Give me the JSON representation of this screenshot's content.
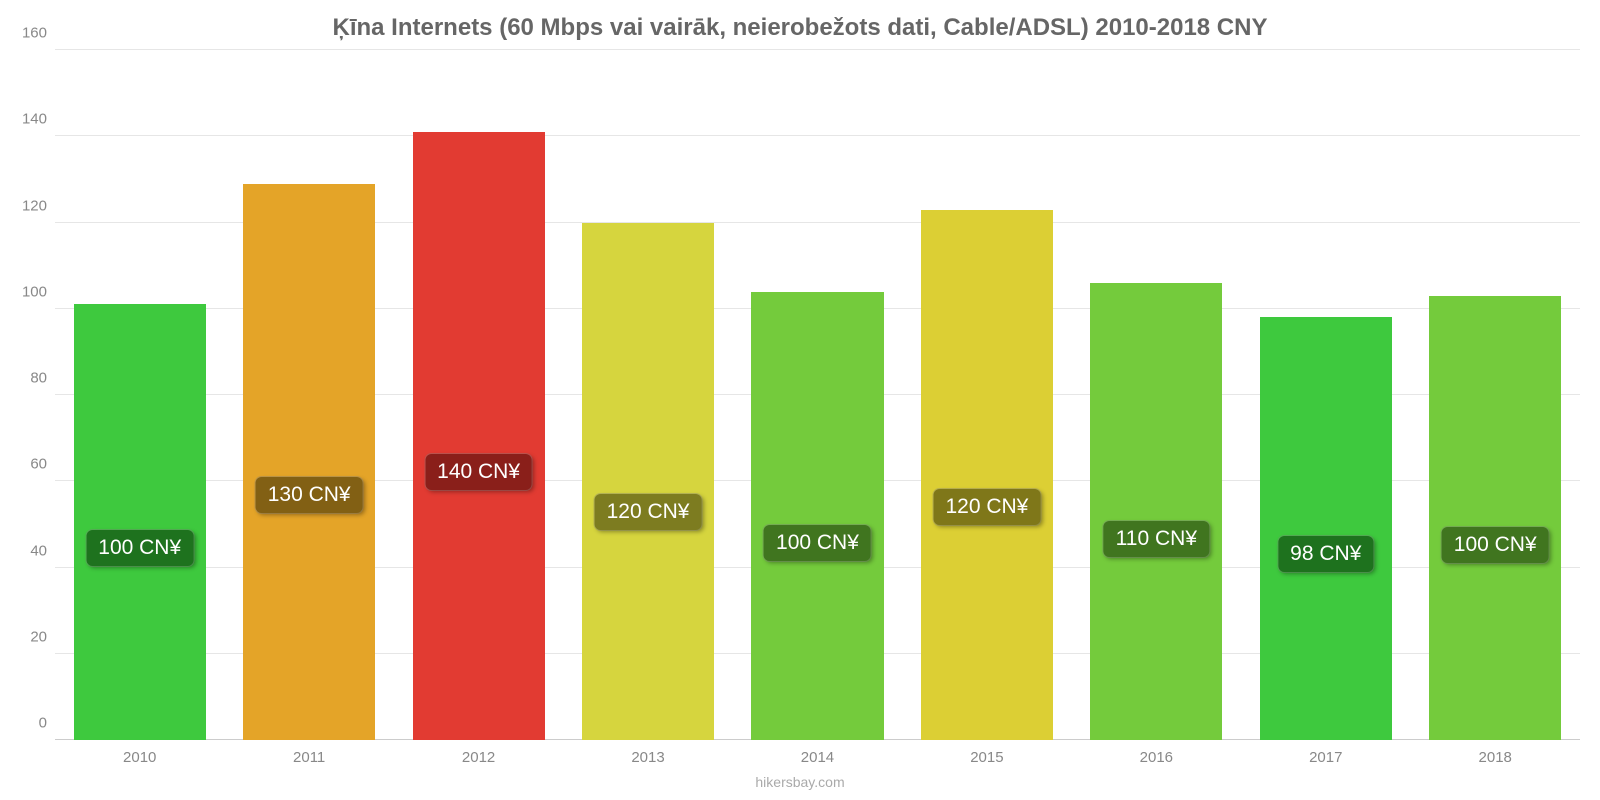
{
  "title": "Ķīna Internets (60 Mbps vai vairāk, neierobežots dati, Cable/ADSL) 2010-2018 CNY",
  "source": "hikersbay.com",
  "chart": {
    "type": "bar",
    "ylim": [
      0,
      160
    ],
    "ytick_step": 20,
    "yticks": [
      0,
      20,
      40,
      60,
      80,
      100,
      120,
      140,
      160
    ],
    "background_color": "#ffffff",
    "grid_color": "#e6e6e6",
    "baseline_color": "#cccccc",
    "axis_label_color": "#888888",
    "title_color": "#666666",
    "title_fontsize": 24,
    "axis_fontsize": 15,
    "bar_label_fontsize": 21,
    "bar_label_text_color": "#ffffff",
    "bar_width_pct": 78,
    "categories": [
      "2010",
      "2011",
      "2012",
      "2013",
      "2014",
      "2015",
      "2016",
      "2017",
      "2018"
    ],
    "values": [
      101,
      129,
      141,
      120,
      104,
      123,
      106,
      98,
      103
    ],
    "display_labels": [
      "100 CN¥",
      "130 CN¥",
      "140 CN¥",
      "120 CN¥",
      "100 CN¥",
      "120 CN¥",
      "110 CN¥",
      "98 CN¥",
      "100 CN¥"
    ],
    "bar_colors": [
      "#3ec93e",
      "#e4a428",
      "#e23b32",
      "#d6d53e",
      "#74cb3c",
      "#dccf34",
      "#74cb3c",
      "#3ec93e",
      "#74cb3c"
    ],
    "label_bg_colors": [
      "#1e721e",
      "#826014",
      "#8a1f1a",
      "#7d7c20",
      "#40751f",
      "#7f7719",
      "#40751f",
      "#1e721e",
      "#40751f"
    ]
  }
}
